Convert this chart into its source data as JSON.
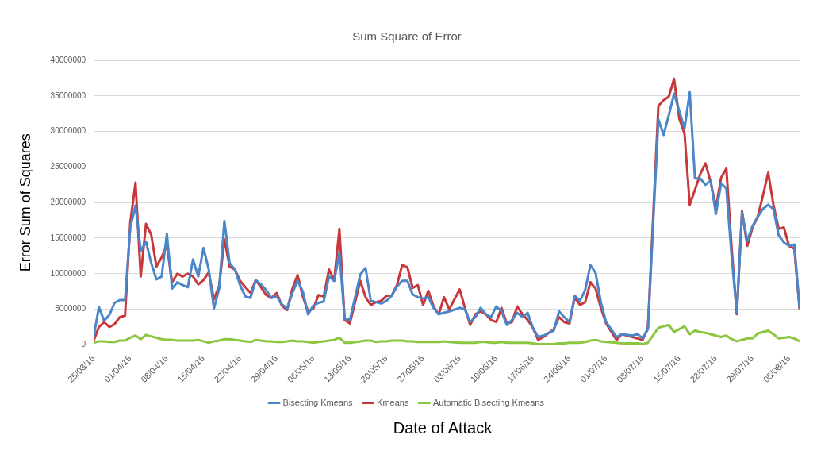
{
  "chart_data": {
    "type": "line",
    "title": "Sum Square of Error",
    "xlabel": "Date of Attack",
    "ylabel": "Error Sum of Squares",
    "x": [
      "--03-25",
      "--03-26",
      "--03-27",
      "--03-28",
      "--03-29",
      "--03-30",
      "--03-31",
      "--04-01",
      "--04-02",
      "--04-03",
      "--04-04",
      "--04-05",
      "--04-06",
      "--04-07",
      "--04-08",
      "--04-09",
      "--04-10",
      "--04-11",
      "--04-12",
      "--04-13",
      "--04-14",
      "--04-15",
      "--04-16",
      "--04-17",
      "--04-18",
      "--04-19",
      "--04-20",
      "--04-21",
      "--04-22",
      "--04-23",
      "--04-24",
      "--04-25",
      "--04-26",
      "--04-27",
      "--04-28",
      "--04-29",
      "--04-30",
      "--05-01",
      "--05-02",
      "--05-03",
      "--05-04",
      "--05-05",
      "--05-06",
      "--05-07",
      "--05-08",
      "--05-09",
      "--05-10",
      "--05-11",
      "--05-12",
      "--05-13",
      "--05-15",
      "--05-16",
      "--05-17",
      "--05-18",
      "--05-19",
      "--05-20",
      "--05-21",
      "--05-22",
      "--05-23",
      "--05-24",
      "--05-25",
      "--05-26",
      "--05-27",
      "--05-28",
      "--05-29",
      "--05-30",
      "--05-31",
      "--06-01",
      "--06-03",
      "--06-04",
      "--06-05",
      "--06-06",
      "--06-07",
      "--06-08",
      "--06-09",
      "--06-10",
      "--06-11",
      "--06-12",
      "--06-13",
      "--06-14",
      "--06-15",
      "--06-16",
      "--06-17",
      "--06-18",
      "--06-19",
      "--06-21",
      "--06-22",
      "--06-23",
      "--06-24",
      "--06-25",
      "--06-26",
      "--06-27",
      "--06-28",
      "--06-29",
      "--06-30",
      "--07-01",
      "--07-03",
      "--07-04",
      "--07-06",
      "--07-07",
      "--07-08",
      "--07-09",
      "--07-11",
      "--07-12",
      "--07-13",
      "--07-14",
      "--07-15",
      "--07-16",
      "--07-17",
      "--07-18",
      "--07-19",
      "--07-20",
      "--07-21",
      "--07-22",
      "--07-23",
      "--07-24",
      "--07-25",
      "--07-26",
      "--07-27",
      "--07-28",
      "--07-29",
      "--07-30",
      "--07-31",
      "--08-01",
      "--08-02",
      "--08-03",
      "--08-04",
      "--08-05",
      "--08-06",
      "--08-07"
    ],
    "series": [
      {
        "name": "Bisecting Kmeans",
        "color": "#4a86c8",
        "values": [
          1200000,
          5300000,
          3400000,
          4200000,
          5900000,
          6300000,
          6300000,
          16500000,
          19600000,
          13200000,
          14500000,
          11500000,
          9200000,
          9600000,
          15600000,
          7900000,
          8800000,
          8400000,
          8100000,
          12000000,
          9600000,
          13600000,
          10600000,
          5100000,
          7900000,
          17400000,
          11500000,
          10600000,
          8400000,
          6800000,
          6600000,
          9100000,
          8500000,
          7700000,
          6600000,
          6800000,
          5700000,
          5100000,
          7300000,
          9000000,
          7500000,
          4300000,
          5500000,
          5900000,
          6100000,
          9600000,
          9000000,
          12900000,
          3700000,
          3500000,
          9900000,
          10800000,
          6200000,
          6000000,
          5800000,
          6200000,
          6900000,
          8200000,
          9000000,
          9000000,
          7100000,
          6700000,
          6500000,
          6700000,
          5200000,
          4300000,
          4500000,
          4700000,
          5200000,
          5000000,
          3200000,
          3900000,
          5200000,
          4300000,
          3900000,
          5400000,
          4700000,
          2800000,
          3500000,
          4500000,
          3900000,
          4500000,
          2400000,
          1100000,
          1300000,
          2000000,
          4700000,
          3900000,
          3200000,
          6900000,
          6200000,
          7700000,
          11200000,
          10100000,
          6000000,
          3200000,
          1100000,
          1500000,
          1300000,
          1500000,
          900000,
          2200000,
          31700000,
          29500000,
          32300000,
          35300000,
          32900000,
          30400000,
          35500000,
          23400000,
          23400000,
          22500000,
          23100000,
          18400000,
          22700000,
          22000000,
          12500000,
          4500000,
          18600000,
          14600000,
          16700000,
          18000000,
          19100000,
          19700000,
          19100000,
          15400000,
          14400000,
          13900000,
          14100000,
          5200000
        ]
      },
      {
        "name": "Kmeans",
        "color": "#c8373a",
        "values": [
          600000,
          2500000,
          3200000,
          2500000,
          2900000,
          3900000,
          4100000,
          17200000,
          22800000,
          9600000,
          17000000,
          15500000,
          11000000,
          12300000,
          14000000,
          8800000,
          10000000,
          9600000,
          10000000,
          9600000,
          8500000,
          9100000,
          10200000,
          6400000,
          8300000,
          14800000,
          11000000,
          10600000,
          9000000,
          8100000,
          7300000,
          9100000,
          8100000,
          7000000,
          6600000,
          7300000,
          5500000,
          4900000,
          7900000,
          9800000,
          6800000,
          4700000,
          5100000,
          7000000,
          6800000,
          10600000,
          9000000,
          16300000,
          3500000,
          3000000,
          9000000,
          6700000,
          5600000,
          6000000,
          6200000,
          6900000,
          6900000,
          8400000,
          11200000,
          10900000,
          8000000,
          8400000,
          5600000,
          7600000,
          5400000,
          4300000,
          6700000,
          5000000,
          7800000,
          5200000,
          2800000,
          4300000,
          4700000,
          4300000,
          3500000,
          3200000,
          5200000,
          3000000,
          3200000,
          5400000,
          4300000,
          3500000,
          2400000,
          700000,
          1100000,
          2200000,
          3900000,
          3200000,
          3000000,
          6700000,
          5600000,
          6000000,
          8800000,
          7900000,
          5200000,
          3000000,
          700000,
          1500000,
          1100000,
          900000,
          700000,
          2400000,
          33600000,
          34400000,
          34900000,
          37400000,
          31800000,
          29700000,
          19700000,
          21800000,
          24000000,
          25500000,
          22900000,
          19300000,
          23500000,
          24800000,
          13700000,
          4300000,
          18800000,
          13900000,
          16500000,
          18000000,
          21000000,
          24200000,
          19700000,
          16300000,
          16500000,
          13900000,
          13500000,
          5000000
        ]
      },
      {
        "name": "Automatic Bisecting Kmeans",
        "color": "#8cc63f",
        "values": [
          300000,
          500000,
          500000,
          400000,
          400000,
          600000,
          600000,
          1000000,
          1300000,
          800000,
          1400000,
          1200000,
          1000000,
          800000,
          700000,
          700000,
          600000,
          600000,
          600000,
          600000,
          700000,
          500000,
          300000,
          500000,
          600000,
          800000,
          800000,
          700000,
          600000,
          500000,
          400000,
          700000,
          600000,
          500000,
          500000,
          400000,
          400000,
          500000,
          600000,
          500000,
          500000,
          400000,
          300000,
          400000,
          500000,
          600000,
          700000,
          1000000,
          300000,
          300000,
          500000,
          600000,
          600000,
          400000,
          500000,
          500000,
          600000,
          600000,
          600000,
          500000,
          500000,
          400000,
          400000,
          400000,
          400000,
          400000,
          500000,
          400000,
          300000,
          300000,
          300000,
          300000,
          400000,
          400000,
          300000,
          300000,
          400000,
          300000,
          300000,
          300000,
          300000,
          300000,
          200000,
          100000,
          100000,
          100000,
          200000,
          200000,
          300000,
          300000,
          300000,
          400000,
          600000,
          700000,
          500000,
          400000,
          300000,
          200000,
          200000,
          200000,
          100000,
          300000,
          2400000,
          2600000,
          2800000,
          1800000,
          2200000,
          2600000,
          1500000,
          2000000,
          1800000,
          1700000,
          1500000,
          1300000,
          1100000,
          1300000,
          800000,
          500000,
          700000,
          900000,
          900000,
          1600000,
          1800000,
          2000000,
          1500000,
          900000,
          1000000,
          1100000,
          900000,
          500000
        ]
      }
    ],
    "xlim": [
      "--03-25",
      "--08-07"
    ],
    "xticks": [
      {
        "value": "--03-25",
        "label": "25/03/16"
      },
      {
        "value": "--04-01",
        "label": "01/04/16"
      },
      {
        "value": "--04-08",
        "label": "08/04/16"
      },
      {
        "value": "--04-15",
        "label": "15/04/16"
      },
      {
        "value": "--04-22",
        "label": "22/04/16"
      },
      {
        "value": "--04-29",
        "label": "29/04/16"
      },
      {
        "value": "--05-06",
        "label": "06/05/16"
      },
      {
        "value": "--05-13",
        "label": "13/05/16"
      },
      {
        "value": "--05-20",
        "label": "20/05/16"
      },
      {
        "value": "--05-27",
        "label": "27/05/16"
      },
      {
        "value": "--06-03",
        "label": "03/06/16"
      },
      {
        "value": "--06-10",
        "label": "10/06/16"
      },
      {
        "value": "--06-17",
        "label": "17/06/16"
      },
      {
        "value": "--06-24",
        "label": "24/06/16"
      },
      {
        "value": "--07-01",
        "label": "01/07/16"
      },
      {
        "value": "--07-08",
        "label": "08/07/16"
      },
      {
        "value": "--07-15",
        "label": "15/07/16"
      },
      {
        "value": "--07-22",
        "label": "22/07/16"
      },
      {
        "value": "--07-29",
        "label": "29/07/16"
      },
      {
        "value": "--08-05",
        "label": "05/08/16"
      }
    ],
    "ylim": [
      0,
      40000000
    ],
    "yticks": [
      0,
      5000000,
      10000000,
      15000000,
      20000000,
      25000000,
      30000000,
      35000000,
      40000000
    ],
    "grid": "y",
    "legend": "bottom",
    "marker": "none",
    "line_style": "solid"
  }
}
